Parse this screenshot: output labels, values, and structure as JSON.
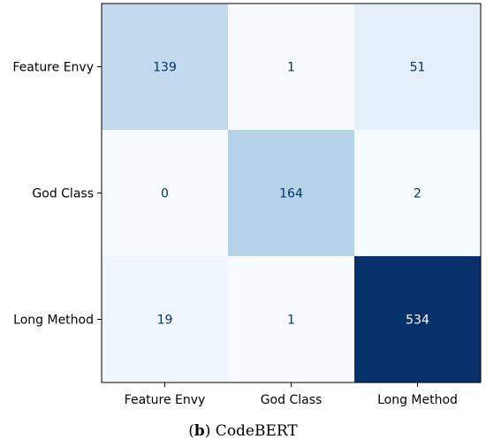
{
  "chart_data": {
    "type": "heatmap",
    "x_labels": [
      "Feature Envy",
      "God Class",
      "Long Method"
    ],
    "y_labels": [
      "Feature Envy",
      "God Class",
      "Long Method"
    ],
    "values": [
      [
        139,
        1,
        51
      ],
      [
        0,
        164,
        2
      ],
      [
        19,
        1,
        534
      ]
    ],
    "colormap": "Blues",
    "vmin": 0,
    "vmax": 534,
    "grid": false
  },
  "caption": {
    "open": "(",
    "letter": "b",
    "close": ")",
    "text": " CodeBERT"
  },
  "colors": {
    "low": "#f7fbff",
    "high": "#08306b",
    "dark_text": "#08306b",
    "light_text": "#ffffff"
  }
}
